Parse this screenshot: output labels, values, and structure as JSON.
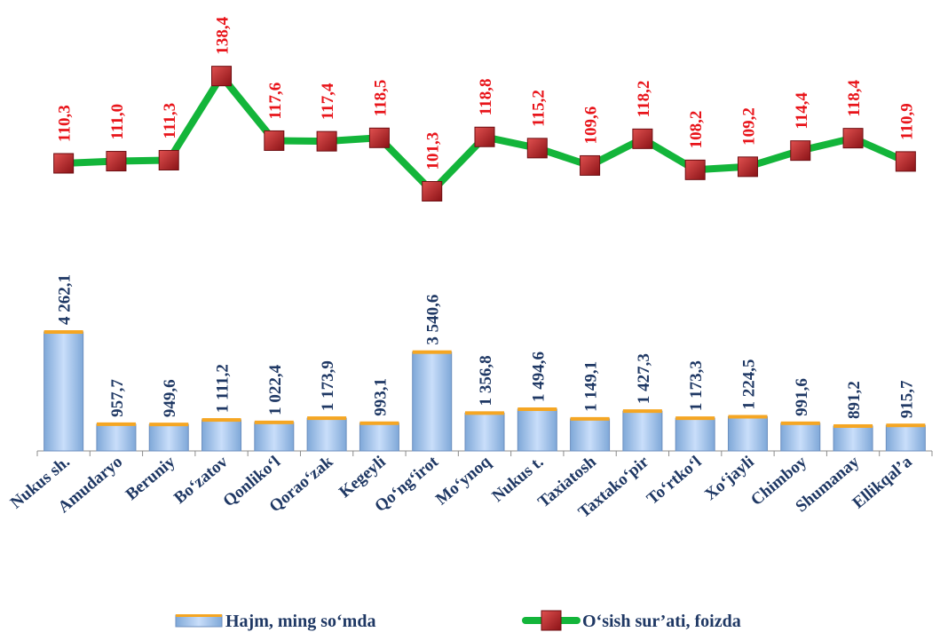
{
  "chart_data": {
    "type": "bar",
    "categories": [
      "Nukus sh.",
      "Amudaryo",
      "Beruniy",
      "Bo‘zatov",
      "Qonliko‘l",
      "Qorao‘zak",
      "Kegeyli",
      "Qo‘ng‘irot",
      "Mo‘ynoq",
      "Nukus t.",
      "Taxiatosh",
      "Taxtako‘pir",
      "To‘rtko‘l",
      "Xo‘jayli",
      "Chimboy",
      "Shumanay",
      "Ellikqal’a"
    ],
    "series": [
      {
        "name": "Hajm, ming so‘mda",
        "type": "bar",
        "values": [
          4262.1,
          957.7,
          949.6,
          1111.2,
          1022.4,
          1173.9,
          993.1,
          3540.6,
          1356.8,
          1494.6,
          1149.1,
          1427.3,
          1173.3,
          1224.5,
          991.6,
          891.2,
          915.7
        ],
        "labels": [
          "4 262,1",
          "957,7",
          "949,6",
          "1 111,2",
          "1 022,4",
          "1 173,9",
          "993,1",
          "3 540,6",
          "1 356,8",
          "1 494,6",
          "1 149,1",
          "1 427,3",
          "1 173,3",
          "1 224,5",
          "991,6",
          "891,2",
          "915,7"
        ],
        "color": "#9dc3e6"
      },
      {
        "name": "O‘sish sur’ati, foizda",
        "type": "line",
        "values": [
          110.3,
          111.0,
          111.3,
          138.4,
          117.6,
          117.4,
          118.5,
          101.3,
          118.8,
          115.2,
          109.6,
          118.2,
          108.2,
          109.2,
          114.4,
          118.4,
          110.9
        ],
        "labels": [
          "110,3",
          "111,0",
          "111,3",
          "138,4",
          "117,6",
          "117,4",
          "118,5",
          "101,3",
          "118,8",
          "115,2",
          "109,6",
          "118,2",
          "108,2",
          "109,2",
          "114,4",
          "118,4",
          "110,9"
        ],
        "line_color": "#13b53a",
        "marker_color": "#c0272d"
      }
    ],
    "title": "",
    "xlabel": "",
    "ylabel": "",
    "legend_position": "bottom",
    "grid": false
  }
}
